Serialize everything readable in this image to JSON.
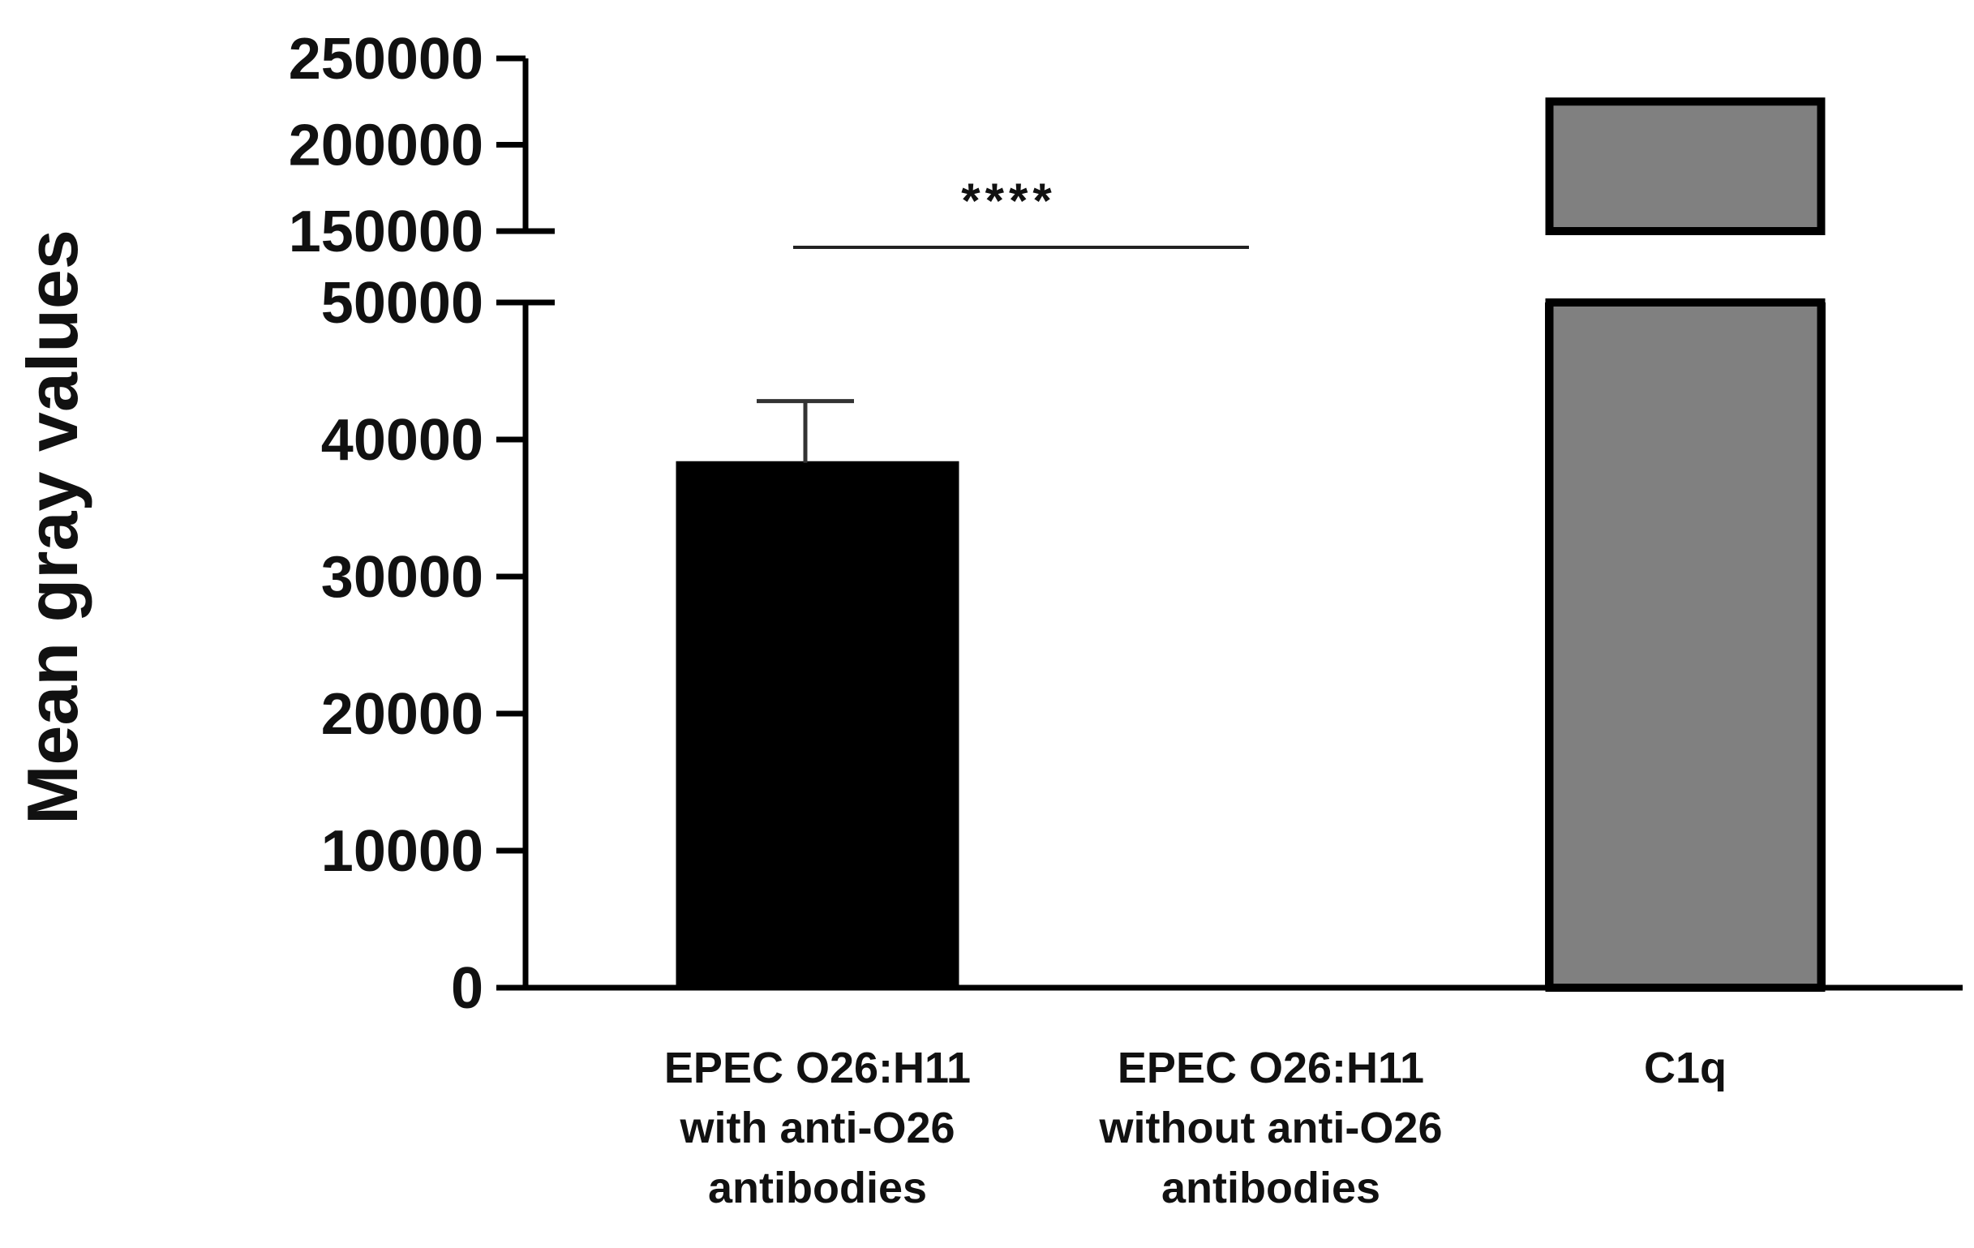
{
  "chart_data": {
    "type": "bar",
    "ylabel": "Mean gray values",
    "xlabel": "",
    "title": "",
    "categories": [
      [
        "EPEC O26:H11",
        "with anti-O26",
        "antibodies"
      ],
      [
        "EPEC O26:H11",
        "without anti-O26",
        "antibodies"
      ],
      [
        "C1q"
      ]
    ],
    "values": [
      38300,
      0,
      225000
    ],
    "error_upper": [
      42800,
      null,
      null
    ],
    "bar_fill": [
      "#000000",
      "#ffffff",
      "#808080"
    ],
    "bar_stroke": "#000000",
    "axis_break": {
      "lower_range": [
        0,
        50000
      ],
      "upper_range": [
        150000,
        250000
      ]
    },
    "lower_ticks": [
      0,
      10000,
      20000,
      30000,
      40000,
      50000
    ],
    "upper_ticks": [
      150000,
      200000,
      250000
    ],
    "significance": {
      "label": "****",
      "from_category": 0,
      "to_category": 1
    },
    "grid": false
  }
}
